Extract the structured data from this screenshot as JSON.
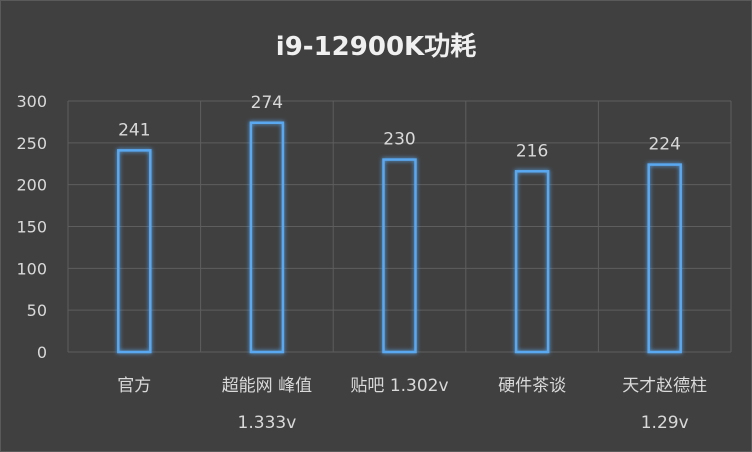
{
  "chart_data": {
    "type": "bar",
    "title": "i9-12900K功耗",
    "categories": [
      [
        "官方"
      ],
      [
        "超能网 峰值",
        "1.333v"
      ],
      [
        "贴吧 1.302v"
      ],
      [
        "硬件茶谈"
      ],
      [
        "天才赵德柱",
        "1.29v"
      ]
    ],
    "values": [
      241,
      274,
      230,
      216,
      224
    ],
    "ylim": [
      0,
      300
    ],
    "yticks": [
      0,
      50,
      100,
      150,
      200,
      250,
      300
    ],
    "xlabel": "",
    "ylabel": "",
    "grid": true,
    "legend": "none",
    "colors": {
      "bar_stroke": "#4a90d0",
      "bar_glow": "#5aa8f0",
      "background": "#404040",
      "text": "#d9d9d9"
    }
  }
}
